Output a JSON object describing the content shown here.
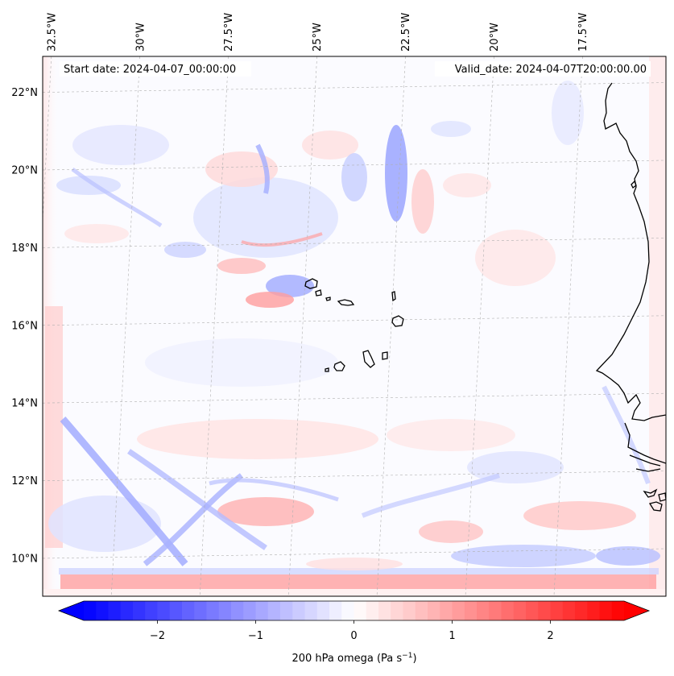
{
  "map": {
    "start_date_text": "Start date: 2024-04-07_00:00:00",
    "valid_date_text": "Valid_date: 2024-04-07T20:00:00.00",
    "lon_labels": [
      "32.5°W",
      "30°W",
      "27.5°W",
      "25°W",
      "22.5°W",
      "20°W",
      "17.5°W"
    ],
    "lat_labels": [
      "22°N",
      "20°N",
      "18°N",
      "16°N",
      "14°N",
      "12°N",
      "10°N"
    ],
    "lon_values": [
      -32.5,
      -30,
      -27.5,
      -25,
      -22.5,
      -20,
      -17.5
    ],
    "lat_values": [
      22,
      20,
      18,
      16,
      14,
      12,
      10
    ],
    "extent": {
      "lon_min": -32.7,
      "lon_max": -15.1,
      "lat_min": 8.9,
      "lat_max": 22.8
    }
  },
  "colorbar": {
    "label_prefix": "200 hPa omega (Pa s",
    "label_exponent": "−1",
    "label_suffix": ")",
    "ticks": [
      "−2",
      "−1",
      "0",
      "1",
      "2"
    ],
    "tick_values": [
      -2,
      -1,
      0,
      1,
      2
    ],
    "vmin": -2.75,
    "vmax": 2.75,
    "cmap": "bwr",
    "extend": "both"
  }
}
